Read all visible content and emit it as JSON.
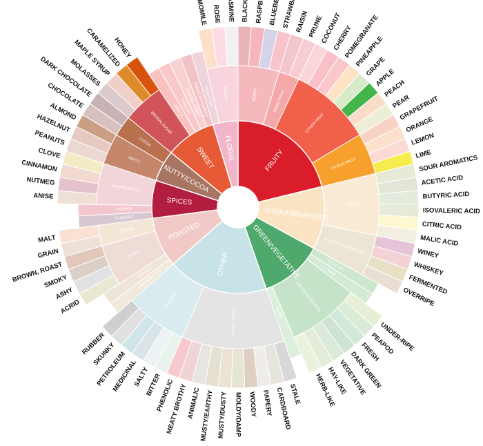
{
  "chart_data": {
    "type": "sunburst",
    "children": [
      {
        "label": "FRUITY",
        "color": "#da1d2a",
        "children": [
          {
            "label": "BERRY",
            "color": "#f4b8bd",
            "children": [
              {
                "label": "BLACKBERRY",
                "color": "#e8b4b8"
              },
              {
                "label": "RASPBERRY",
                "color": "#f5b5bc"
              },
              {
                "label": "BLUEBERRY",
                "color": "#d4d3ea"
              },
              {
                "label": "STRAWBERRY",
                "color": "#f9c4c9"
              }
            ]
          },
          {
            "label": "DRIED FRUIT",
            "color": "#f4a9a8",
            "children": [
              {
                "label": "RAISIN",
                "color": "#f2c6cc"
              },
              {
                "label": "PRUNE",
                "color": "#f7cdd3"
              }
            ]
          },
          {
            "label": "OTHER FRUIT",
            "color": "#f0604a",
            "children": [
              {
                "label": "COCONUT",
                "color": "#fbd5d8"
              },
              {
                "label": "CHERRY",
                "color": "#fac0c8"
              },
              {
                "label": "POMEGRANATE",
                "color": "#f9c8cb"
              },
              {
                "label": "PINEAPPLE",
                "color": "#fde3c3"
              },
              {
                "label": "GRAPE",
                "color": "#d8ebc8"
              },
              {
                "label": "APPLE",
                "color": "#44b549"
              },
              {
                "label": "PEACH",
                "color": "#f9dcc7"
              },
              {
                "label": "PEAR",
                "color": "#eeeed6"
              }
            ]
          },
          {
            "label": "CITRUS FRUIT",
            "color": "#f7a02e",
            "children": [
              {
                "label": "GRAPEFRUIT",
                "color": "#f9d2c6"
              },
              {
                "label": "ORANGE",
                "color": "#fbe0cc"
              },
              {
                "label": "LEMON",
                "color": "#fcd9d4"
              },
              {
                "label": "LIME",
                "color": "#f7ec4e"
              }
            ]
          }
        ]
      },
      {
        "label": "SOUR/FERMENTED",
        "color": "#fae4c3",
        "children": [
          {
            "label": "SOUR",
            "color": "#f9ebd5",
            "children": [
              {
                "label": "SOUR AROMATICS",
                "color": "#e6ebd8"
              },
              {
                "label": "ACETIC ACID",
                "color": "#e1e6d7"
              },
              {
                "label": "BUTYRIC ACID",
                "color": "#e5ebdc"
              },
              {
                "label": "ISOVALERIC ACID",
                "color": "#e5ead9"
              },
              {
                "label": "CITRIC ACID",
                "color": "#fef8d0"
              },
              {
                "label": "MALIC ACID",
                "color": "#f2eee2"
              }
            ]
          },
          {
            "label": "ALCOHOL/FERMENTED",
            "color": "#ece5d3",
            "children": [
              {
                "label": "WINEY",
                "color": "#e4c4d6"
              },
              {
                "label": "WHISKEY",
                "color": "#f3d2d5"
              },
              {
                "label": "FERMENTED",
                "color": "#e9e0c8"
              },
              {
                "label": "OVERRIPE",
                "color": "#e8dfd2"
              }
            ]
          }
        ]
      },
      {
        "label": "GREEN/VEGETATIVE",
        "color": "#4fa86c",
        "children": [
          {
            "label": "OLIVE OIL",
            "color": "#cde7cf"
          },
          {
            "label": "RAW",
            "color": "#d4ead6"
          },
          {
            "label": "GREEN/VEGETATIVE",
            "color": "#c5e3c9",
            "children": [
              {
                "label": "UNDER-RIPE",
                "color": "#e7eed6"
              },
              {
                "label": "PEAPOD",
                "color": "#dbecd6"
              },
              {
                "label": "FRESH",
                "color": "#d2e8d8"
              },
              {
                "label": "DARK GREEN",
                "color": "#cfe3d2"
              },
              {
                "label": "VEGETATIVE",
                "color": "#dbe9d9"
              },
              {
                "label": "HAY-LIKE",
                "color": "#e2ecd8"
              },
              {
                "label": "HERB-LIKE",
                "color": "#e9f2dd"
              }
            ]
          },
          {
            "label": "BEANY",
            "color": "#dcefdc"
          }
        ]
      },
      {
        "label": "OTHER",
        "color": "#c8e3e8",
        "children": [
          {
            "label": "PAPERY/MUSTY",
            "color": "#e4e4e4",
            "children": [
              {
                "label": "STALE",
                "color": "#d8d8d8"
              },
              {
                "label": "CARDBOARD",
                "color": "#e6e4dd"
              },
              {
                "label": "PAPERY",
                "color": "#eeede7"
              },
              {
                "label": "WOODY",
                "color": "#ddd0c2"
              },
              {
                "label": "MOLDY/DAMP",
                "color": "#e6e4d4"
              },
              {
                "label": "MUSTY/DUSTY",
                "color": "#ebe3d4"
              },
              {
                "label": "MUSTY/EARTHY",
                "color": "#e5e1d2"
              },
              {
                "label": "ANIMALIC",
                "color": "#e7e5df"
              },
              {
                "label": "MEATY BROTHY",
                "color": "#f0d3d5"
              },
              {
                "label": "PHENOLIC",
                "color": "#f6c9cd"
              }
            ]
          },
          {
            "label": "CHEMICAL",
            "color": "#d9ebee",
            "children": [
              {
                "label": "BITTER",
                "color": "#e8f3ee"
              },
              {
                "label": "SALTY",
                "color": "#edf2f4"
              },
              {
                "label": "MEDICINAL",
                "color": "#d9e4e8"
              },
              {
                "label": "PETROLEUM",
                "color": "#cfe5e9"
              },
              {
                "label": "SKUNKY",
                "color": "#e0e0e0"
              },
              {
                "label": "RUBBER",
                "color": "#cfcfcf"
              }
            ]
          }
        ]
      },
      {
        "label": "ROASTED",
        "color": "#f1c9c6",
        "children": [
          {
            "label": "PIPE TOBACCO",
            "color": "#f1e9dc"
          },
          {
            "label": "TOBACCO",
            "color": "#efe4d8"
          },
          {
            "label": "BURNT",
            "color": "#efdcd6",
            "children": [
              {
                "label": "ACRID",
                "color": "#e9e8d3"
              },
              {
                "label": "ASHY",
                "color": "#e0e3e1"
              },
              {
                "label": "SMOKY",
                "color": "#dbd0c8"
              },
              {
                "label": "BROWN, ROAST",
                "color": "#e2c8bb"
              }
            ]
          },
          {
            "label": "CEREAL",
            "color": "#f3e6d6",
            "children": [
              {
                "label": "GRAIN",
                "color": "#ece0d8"
              },
              {
                "label": "MALT",
                "color": "#fbe0d4"
              }
            ]
          }
        ]
      },
      {
        "label": "SPICES",
        "color": "#b31d3f",
        "children": [
          {
            "label": "PUNGENT",
            "color": "#d6c8d3"
          },
          {
            "label": "PEPPER",
            "color": "#f3c6ce"
          },
          {
            "label": "BROWN SPICE",
            "color": "#f2d5d8",
            "children": [
              {
                "label": "ANISE",
                "color": "#eee0d6"
              },
              {
                "label": "NUTMEG",
                "color": "#e4c2cc"
              },
              {
                "label": "CINNAMON",
                "color": "#f1d8d0"
              },
              {
                "label": "CLOVE",
                "color": "#f1ecc6"
              }
            ]
          }
        ]
      },
      {
        "label": "NUTTY/COCOA",
        "color": "#a87563",
        "children": [
          {
            "label": "NUTTY",
            "color": "#c4876b",
            "children": [
              {
                "label": "PEANUTS",
                "color": "#ebd8d2"
              },
              {
                "label": "HAZELNUT",
                "color": "#e6c9c0"
              },
              {
                "label": "ALMOND",
                "color": "#cb9f84"
              }
            ]
          },
          {
            "label": "COCOA",
            "color": "#b8704f",
            "children": [
              {
                "label": "CHOCOLATE",
                "color": "#d6c1be"
              },
              {
                "label": "DARK CHOCOLATE",
                "color": "#c9b2b4"
              }
            ]
          }
        ]
      },
      {
        "label": "SWEET",
        "color": "#e65a35",
        "children": [
          {
            "label": "BROWN SUGAR",
            "color": "#d0545a",
            "children": [
              {
                "label": "MOLASSES",
                "color": "#dcc9cb"
              },
              {
                "label": "MAPLE SYRUP",
                "color": "#efcfc8"
              },
              {
                "label": "CARAMELIZED",
                "color": "#de8b2a"
              },
              {
                "label": "HONEY",
                "color": "#d9530c"
              }
            ]
          },
          {
            "label": "VANILLA",
            "color": "#f9c2c1"
          },
          {
            "label": "VANILLIN",
            "color": "#f9c8cb"
          },
          {
            "label": "OVERALL SWEET",
            "color": "#f9d0d0"
          },
          {
            "label": "SWEET AROMATICS",
            "color": "#f3c2c6"
          }
        ]
      },
      {
        "label": "FLORAL",
        "color": "#f2b6cc",
        "children": [
          {
            "label": "BLACK TEA",
            "color": "#eed3da"
          },
          {
            "label": "FLORAL",
            "color": "#f8d4de",
            "children": [
              {
                "label": "CHAMOMILE",
                "color": "#fde0c9"
              },
              {
                "label": "ROSE",
                "color": "#fcdde6"
              },
              {
                "label": "JASMINE",
                "color": "#f1f1f1"
              }
            ]
          }
        ]
      }
    ]
  }
}
